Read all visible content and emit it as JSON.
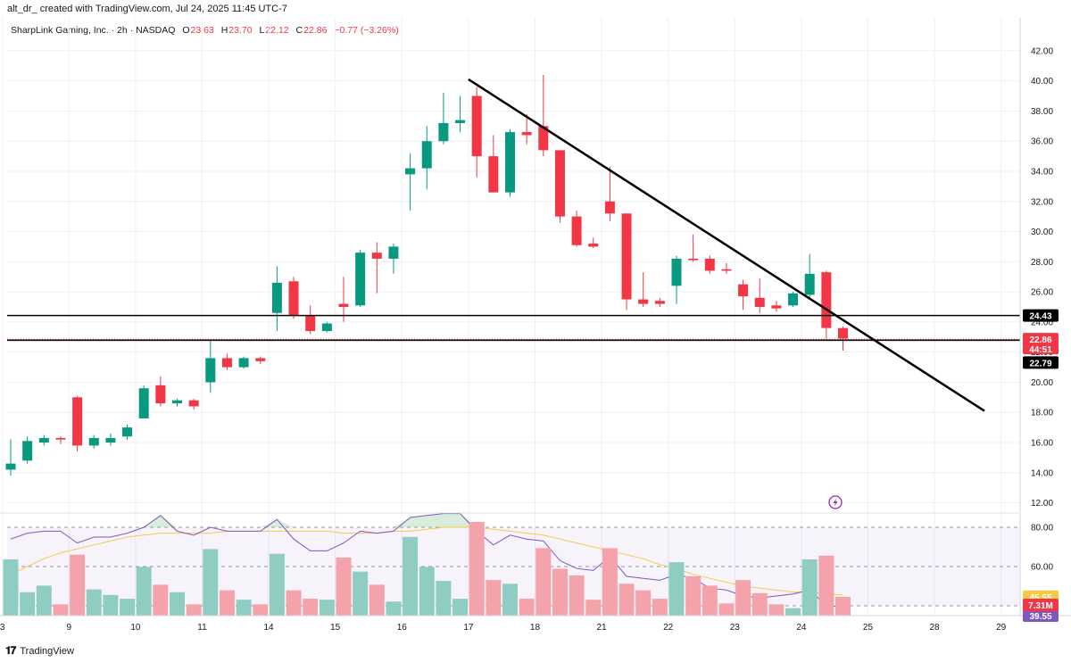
{
  "header": {
    "attribution": "alt_dr_ created with TradingView.com, Jul 24, 2025 11:45 UTC-7"
  },
  "legend": {
    "symbol": "SharpLink Gaming, Inc. · 2h · NASDAQ",
    "o_label": "O",
    "o_value": "23.63",
    "h_label": "H",
    "h_value": "23.70",
    "l_label": "L",
    "l_value": "22.12",
    "c_label": "C",
    "c_value": "22.86",
    "change": "−0.77 (−3.26%)"
  },
  "brand": {
    "name": "TradingView"
  },
  "colors": {
    "up": "#089981",
    "down": "#f23645",
    "up_vol": "#8fcdc3",
    "down_vol": "#f5a3ab",
    "rsi": "#7e57c2",
    "rsi_ma": "#f7c948",
    "grid": "#eef0f3",
    "trend": "#000000"
  },
  "chart_data": {
    "type": "candlestick",
    "ylim": [
      11.5,
      43.0
    ],
    "yticks": [
      12,
      14,
      16,
      18,
      20,
      22,
      24,
      26,
      28,
      30,
      32,
      34,
      36,
      38,
      40,
      42
    ],
    "x_tick_labels": [
      "3",
      "9",
      "10",
      "11",
      "14",
      "15",
      "16",
      "17",
      "18",
      "21",
      "22",
      "23",
      "24",
      "25",
      "28",
      "29"
    ],
    "x_tick_positions": [
      -0.5,
      3.5,
      7.5,
      11.5,
      15.5,
      19.5,
      23.5,
      27.5,
      31.5,
      35.5,
      39.5,
      43.5,
      47.5,
      51.5,
      55.5,
      59.5
    ],
    "candles": [
      {
        "o": 14.2,
        "h": 16.2,
        "l": 13.8,
        "c": 14.6
      },
      {
        "o": 14.8,
        "h": 16.4,
        "l": 14.6,
        "c": 16.1
      },
      {
        "o": 16.0,
        "h": 16.5,
        "l": 15.8,
        "c": 16.3
      },
      {
        "o": 16.3,
        "h": 16.4,
        "l": 15.9,
        "c": 16.2
      },
      {
        "o": 19.0,
        "h": 19.1,
        "l": 15.4,
        "c": 15.8
      },
      {
        "o": 15.8,
        "h": 16.5,
        "l": 15.6,
        "c": 16.3
      },
      {
        "o": 16.0,
        "h": 16.6,
        "l": 15.8,
        "c": 16.3
      },
      {
        "o": 16.4,
        "h": 17.2,
        "l": 16.2,
        "c": 17.0
      },
      {
        "o": 17.6,
        "h": 19.8,
        "l": 17.6,
        "c": 19.6
      },
      {
        "o": 19.8,
        "h": 20.4,
        "l": 18.4,
        "c": 18.6
      },
      {
        "o": 18.6,
        "h": 18.9,
        "l": 18.4,
        "c": 18.8
      },
      {
        "o": 18.8,
        "h": 18.9,
        "l": 18.2,
        "c": 18.4
      },
      {
        "o": 20.0,
        "h": 22.8,
        "l": 19.3,
        "c": 21.6
      },
      {
        "o": 21.6,
        "h": 21.9,
        "l": 20.8,
        "c": 21.0
      },
      {
        "o": 21.0,
        "h": 21.7,
        "l": 20.9,
        "c": 21.6
      },
      {
        "o": 21.6,
        "h": 21.7,
        "l": 21.2,
        "c": 21.4
      },
      {
        "o": 24.6,
        "h": 27.7,
        "l": 23.4,
        "c": 26.6
      },
      {
        "o": 26.7,
        "h": 27.0,
        "l": 24.2,
        "c": 24.4
      },
      {
        "o": 24.4,
        "h": 25.1,
        "l": 23.2,
        "c": 23.4
      },
      {
        "o": 23.4,
        "h": 24.0,
        "l": 23.3,
        "c": 23.9
      },
      {
        "o": 25.2,
        "h": 27.0,
        "l": 24.0,
        "c": 25.0
      },
      {
        "o": 25.1,
        "h": 28.8,
        "l": 25.0,
        "c": 28.6
      },
      {
        "o": 28.6,
        "h": 29.3,
        "l": 25.9,
        "c": 28.2
      },
      {
        "o": 28.2,
        "h": 29.2,
        "l": 27.2,
        "c": 29.0
      },
      {
        "o": 33.8,
        "h": 35.2,
        "l": 31.4,
        "c": 34.2
      },
      {
        "o": 34.2,
        "h": 37.0,
        "l": 32.8,
        "c": 36.0
      },
      {
        "o": 36.0,
        "h": 39.2,
        "l": 35.8,
        "c": 37.2
      },
      {
        "o": 37.2,
        "h": 39.0,
        "l": 36.6,
        "c": 37.4
      },
      {
        "o": 39.0,
        "h": 39.6,
        "l": 33.6,
        "c": 35.0
      },
      {
        "o": 35.0,
        "h": 36.4,
        "l": 32.6,
        "c": 32.6
      },
      {
        "o": 32.6,
        "h": 36.8,
        "l": 32.3,
        "c": 36.6
      },
      {
        "o": 36.6,
        "h": 37.8,
        "l": 35.8,
        "c": 36.4
      },
      {
        "o": 37.0,
        "h": 40.4,
        "l": 35.0,
        "c": 35.4
      },
      {
        "o": 35.4,
        "h": 35.4,
        "l": 30.6,
        "c": 31.0
      },
      {
        "o": 31.0,
        "h": 31.4,
        "l": 29.0,
        "c": 29.1
      },
      {
        "o": 29.2,
        "h": 29.6,
        "l": 28.9,
        "c": 29.0
      },
      {
        "o": 32.0,
        "h": 34.3,
        "l": 30.7,
        "c": 31.2
      },
      {
        "o": 31.2,
        "h": 31.2,
        "l": 24.8,
        "c": 25.5
      },
      {
        "o": 25.5,
        "h": 27.3,
        "l": 25.0,
        "c": 25.2
      },
      {
        "o": 25.4,
        "h": 25.6,
        "l": 25.0,
        "c": 25.2
      },
      {
        "o": 26.4,
        "h": 28.4,
        "l": 25.2,
        "c": 28.2
      },
      {
        "o": 28.2,
        "h": 29.8,
        "l": 28.0,
        "c": 28.1
      },
      {
        "o": 28.2,
        "h": 28.4,
        "l": 27.2,
        "c": 27.4
      },
      {
        "o": 27.5,
        "h": 27.9,
        "l": 27.2,
        "c": 27.4
      },
      {
        "o": 26.5,
        "h": 26.8,
        "l": 24.8,
        "c": 25.7
      },
      {
        "o": 25.6,
        "h": 26.9,
        "l": 24.6,
        "c": 25.0
      },
      {
        "o": 25.1,
        "h": 25.4,
        "l": 24.7,
        "c": 24.9
      },
      {
        "o": 25.1,
        "h": 26.0,
        "l": 25.0,
        "c": 25.9
      },
      {
        "o": 25.8,
        "h": 28.5,
        "l": 25.5,
        "c": 27.2
      },
      {
        "o": 27.3,
        "h": 27.4,
        "l": 22.9,
        "c": 23.6
      },
      {
        "o": 23.6,
        "h": 23.7,
        "l": 22.1,
        "c": 22.9
      }
    ],
    "horizontal_lines": [
      {
        "price": 24.43,
        "label": "24.43"
      },
      {
        "price": 22.79,
        "label": "22.79"
      }
    ],
    "last_price_tag": {
      "price": 22.86,
      "label": "22.86",
      "countdown": "44:51"
    },
    "trendline": {
      "from": {
        "bar": 27.5,
        "price": 40.1
      },
      "to": {
        "bar": 58.5,
        "price": 18.1
      }
    },
    "volume": {
      "values": [
        0.6,
        0.25,
        0.32,
        0.12,
        0.65,
        0.28,
        0.22,
        0.18,
        0.52,
        0.33,
        0.25,
        0.12,
        0.71,
        0.27,
        0.17,
        0.12,
        0.66,
        0.27,
        0.18,
        0.17,
        0.62,
        0.47,
        0.33,
        0.15,
        0.84,
        0.52,
        0.37,
        0.18,
        1.0,
        0.38,
        0.34,
        0.18,
        0.72,
        0.5,
        0.43,
        0.17,
        0.72,
        0.34,
        0.27,
        0.18,
        0.57,
        0.42,
        0.32,
        0.13,
        0.38,
        0.24,
        0.12,
        0.08,
        0.6,
        0.64,
        0.2
      ],
      "last_value_label": "7.31M"
    },
    "rsi": {
      "levels": [
        80,
        60,
        40
      ],
      "level_labels": [
        "80.00",
        "60.00"
      ],
      "ma_value_label": "45.55",
      "rsi_value_label": "39.55",
      "ylim": [
        35,
        85
      ],
      "values": [
        74,
        77,
        78,
        78,
        72,
        75,
        75,
        77,
        80,
        86,
        78,
        76,
        80,
        78,
        78,
        78,
        84,
        74,
        68,
        68,
        72,
        78,
        77,
        78,
        85,
        86,
        87,
        87,
        78,
        71,
        76,
        74,
        73,
        63,
        59,
        58,
        65,
        55,
        54,
        53,
        56,
        54,
        49,
        48,
        45,
        44,
        45,
        46,
        48,
        40,
        39.55
      ],
      "ma_values": [
        56,
        60,
        64,
        67,
        69,
        71,
        73,
        75,
        76,
        77,
        77,
        77,
        77,
        78,
        78,
        78,
        78,
        78,
        78,
        78,
        77,
        77,
        77,
        78,
        78,
        79,
        80,
        80,
        80,
        79,
        78,
        77,
        76,
        74,
        72,
        70,
        68,
        66,
        64,
        61,
        59,
        56,
        54,
        52,
        50,
        49,
        48,
        47,
        47,
        46,
        45.55
      ]
    }
  }
}
